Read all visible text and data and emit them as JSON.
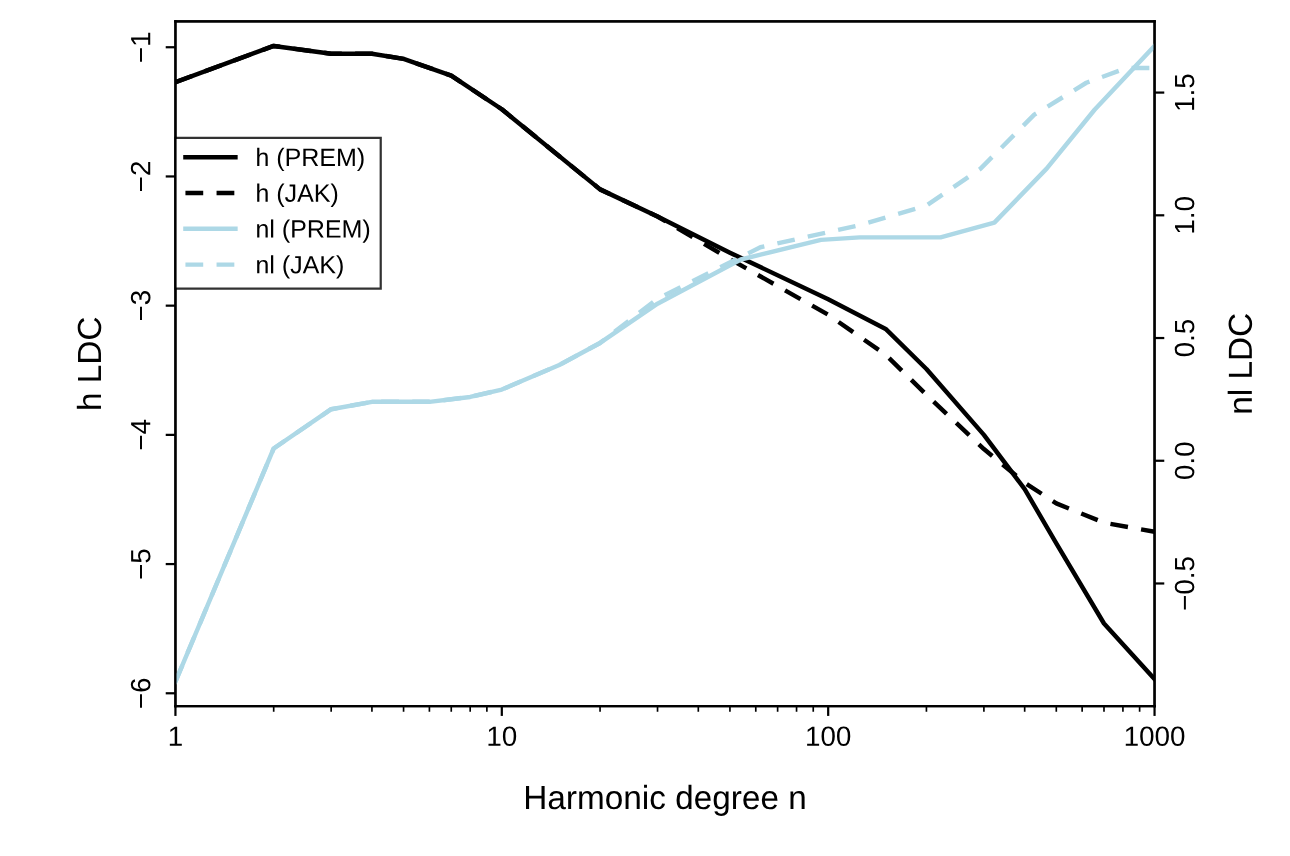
{
  "chart_data": {
    "type": "line",
    "xlabel": "Harmonic degree n",
    "ylabel": "h LDC",
    "y2label": "nl LDC",
    "log": "x",
    "xlim": [
      1,
      1000
    ],
    "xticks": [
      1,
      10,
      100,
      1000
    ],
    "ylim": [
      -6.1,
      -0.8
    ],
    "yticks": [
      -1,
      -2,
      -3,
      -4,
      -5,
      -6
    ],
    "y2lim": [
      -1.0,
      1.79
    ],
    "y2ticks": [
      {
        "value": -0.5,
        "label": "−0.5"
      },
      {
        "value": 0,
        "label": "0.0"
      },
      0.5,
      {
        "value": 1,
        "label": "1.0"
      },
      1.5
    ],
    "grid": false,
    "legend": "top left",
    "marker": "none",
    "series": [
      {
        "name": "h (PREM)",
        "color": "#000000",
        "line_style": "solid",
        "x": [
          1,
          2,
          3,
          4,
          5,
          7,
          10,
          20,
          30,
          50,
          100,
          150,
          200,
          300,
          400,
          500,
          700,
          1000
        ],
        "values": [
          -1.27,
          -0.99,
          -1.05,
          -1.05,
          -1.09,
          -1.22,
          -1.48,
          -2.1,
          -2.31,
          -2.59,
          -2.95,
          -3.18,
          -3.49,
          -4.0,
          -4.42,
          -4.84,
          -5.46,
          -5.89
        ]
      },
      {
        "name": "h (JAK)",
        "color": "#000000",
        "line_style": "dashed",
        "x": [
          1,
          2,
          3,
          4,
          5,
          7,
          10,
          20,
          30,
          50,
          100,
          150,
          200,
          300,
          400,
          500,
          700,
          1000
        ],
        "values": [
          -1.27,
          -0.99,
          -1.05,
          -1.05,
          -1.09,
          -1.22,
          -1.48,
          -2.1,
          -2.31,
          -2.64,
          -3.07,
          -3.38,
          -3.69,
          -4.11,
          -4.37,
          -4.53,
          -4.68,
          -4.75
        ]
      },
      {
        "name": "nl (PREM)",
        "color": "#add8e6",
        "line_style": "solid",
        "axis": "y2",
        "x": [
          1,
          2,
          3,
          4,
          6,
          8,
          10,
          15,
          20,
          30,
          54,
          95,
          125,
          221,
          323,
          467,
          655,
          1000
        ],
        "values": [
          -0.9,
          0.05,
          0.21,
          0.24,
          0.24,
          0.26,
          0.29,
          0.39,
          0.48,
          0.64,
          0.82,
          0.9,
          0.91,
          0.91,
          0.97,
          1.19,
          1.43,
          1.69
        ]
      },
      {
        "name": "nl (JAK)",
        "color": "#add8e6",
        "line_style": "dashed",
        "axis": "y2",
        "x": [
          1,
          2,
          3,
          4,
          6,
          8,
          10,
          15,
          20,
          30,
          62,
          125,
          200,
          293,
          428,
          618,
          821,
          1000
        ],
        "values": [
          -0.9,
          0.05,
          0.21,
          0.24,
          0.24,
          0.26,
          0.29,
          0.39,
          0.48,
          0.66,
          0.87,
          0.96,
          1.04,
          1.19,
          1.41,
          1.54,
          1.6,
          1.6
        ]
      }
    ]
  }
}
